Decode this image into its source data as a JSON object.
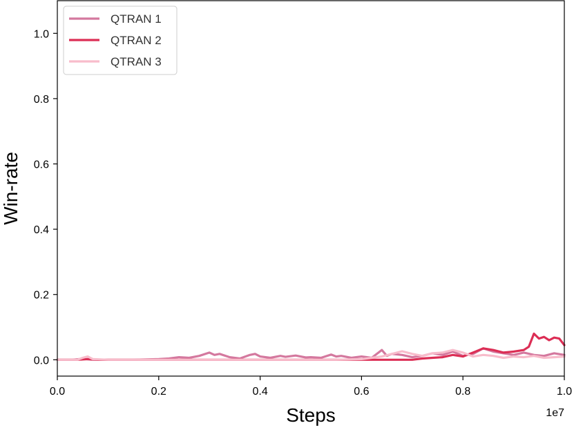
{
  "chart_data": {
    "type": "line",
    "title": "",
    "xlabel": "Steps",
    "ylabel": "Win-rate",
    "x_offset_text": "1e7",
    "xlim": [
      0,
      1.0
    ],
    "ylim": [
      -0.05,
      1.1
    ],
    "xticks": [
      0.0,
      0.2,
      0.4,
      0.6,
      0.8,
      1.0
    ],
    "xtick_labels": [
      "0.0",
      "0.2",
      "0.4",
      "0.6",
      "0.8",
      "1.0"
    ],
    "yticks": [
      0.0,
      0.2,
      0.4,
      0.6,
      0.8,
      1.0
    ],
    "ytick_labels": [
      "0.0",
      "0.2",
      "0.4",
      "0.6",
      "0.8",
      "1.0"
    ],
    "grid": false,
    "legend_position": "top-left",
    "series": [
      {
        "name": "QTRAN 1",
        "color": "#d4789e",
        "points": [
          [
            0.0,
            0.0
          ],
          [
            0.03,
            0.0
          ],
          [
            0.05,
            0.003
          ],
          [
            0.07,
            0.0
          ],
          [
            0.1,
            0.0
          ],
          [
            0.15,
            0.0
          ],
          [
            0.2,
            0.002
          ],
          [
            0.22,
            0.004
          ],
          [
            0.24,
            0.008
          ],
          [
            0.26,
            0.006
          ],
          [
            0.28,
            0.012
          ],
          [
            0.3,
            0.022
          ],
          [
            0.31,
            0.015
          ],
          [
            0.32,
            0.018
          ],
          [
            0.34,
            0.008
          ],
          [
            0.36,
            0.004
          ],
          [
            0.38,
            0.015
          ],
          [
            0.39,
            0.018
          ],
          [
            0.4,
            0.01
          ],
          [
            0.42,
            0.006
          ],
          [
            0.44,
            0.012
          ],
          [
            0.45,
            0.009
          ],
          [
            0.47,
            0.013
          ],
          [
            0.49,
            0.007
          ],
          [
            0.5,
            0.008
          ],
          [
            0.52,
            0.006
          ],
          [
            0.54,
            0.016
          ],
          [
            0.55,
            0.01
          ],
          [
            0.56,
            0.012
          ],
          [
            0.58,
            0.006
          ],
          [
            0.6,
            0.01
          ],
          [
            0.62,
            0.006
          ],
          [
            0.64,
            0.03
          ],
          [
            0.65,
            0.012
          ],
          [
            0.66,
            0.018
          ],
          [
            0.68,
            0.015
          ],
          [
            0.7,
            0.008
          ],
          [
            0.72,
            0.012
          ],
          [
            0.74,
            0.02
          ],
          [
            0.76,
            0.015
          ],
          [
            0.78,
            0.025
          ],
          [
            0.8,
            0.012
          ],
          [
            0.82,
            0.018
          ],
          [
            0.84,
            0.035
          ],
          [
            0.86,
            0.025
          ],
          [
            0.88,
            0.02
          ],
          [
            0.9,
            0.015
          ],
          [
            0.92,
            0.022
          ],
          [
            0.94,
            0.015
          ],
          [
            0.96,
            0.012
          ],
          [
            0.98,
            0.02
          ],
          [
            1.0,
            0.015
          ]
        ]
      },
      {
        "name": "QTRAN 2",
        "color": "#dc2e55",
        "points": [
          [
            0.0,
            0.0
          ],
          [
            0.04,
            0.0
          ],
          [
            0.06,
            0.002
          ],
          [
            0.08,
            0.0
          ],
          [
            0.2,
            0.0
          ],
          [
            0.4,
            0.0
          ],
          [
            0.6,
            0.0
          ],
          [
            0.7,
            0.0
          ],
          [
            0.72,
            0.004
          ],
          [
            0.74,
            0.006
          ],
          [
            0.76,
            0.008
          ],
          [
            0.78,
            0.015
          ],
          [
            0.8,
            0.01
          ],
          [
            0.82,
            0.022
          ],
          [
            0.84,
            0.035
          ],
          [
            0.86,
            0.03
          ],
          [
            0.88,
            0.022
          ],
          [
            0.9,
            0.025
          ],
          [
            0.92,
            0.03
          ],
          [
            0.93,
            0.04
          ],
          [
            0.94,
            0.08
          ],
          [
            0.95,
            0.065
          ],
          [
            0.96,
            0.07
          ],
          [
            0.97,
            0.06
          ],
          [
            0.98,
            0.068
          ],
          [
            0.99,
            0.065
          ],
          [
            1.0,
            0.045
          ]
        ]
      },
      {
        "name": "QTRAN 3",
        "color": "#f8bccb",
        "points": [
          [
            0.0,
            0.0
          ],
          [
            0.04,
            0.0
          ],
          [
            0.05,
            0.006
          ],
          [
            0.06,
            0.01
          ],
          [
            0.07,
            0.002
          ],
          [
            0.1,
            0.0
          ],
          [
            0.2,
            0.0
          ],
          [
            0.3,
            0.0
          ],
          [
            0.4,
            0.0
          ],
          [
            0.5,
            0.0
          ],
          [
            0.55,
            0.0
          ],
          [
            0.6,
            0.002
          ],
          [
            0.62,
            0.006
          ],
          [
            0.64,
            0.01
          ],
          [
            0.66,
            0.018
          ],
          [
            0.67,
            0.022
          ],
          [
            0.68,
            0.026
          ],
          [
            0.7,
            0.018
          ],
          [
            0.72,
            0.012
          ],
          [
            0.74,
            0.02
          ],
          [
            0.76,
            0.022
          ],
          [
            0.78,
            0.03
          ],
          [
            0.8,
            0.022
          ],
          [
            0.82,
            0.01
          ],
          [
            0.84,
            0.015
          ],
          [
            0.86,
            0.012
          ],
          [
            0.88,
            0.006
          ],
          [
            0.9,
            0.01
          ],
          [
            0.92,
            0.008
          ],
          [
            0.94,
            0.012
          ],
          [
            0.96,
            0.006
          ],
          [
            0.98,
            0.008
          ],
          [
            1.0,
            0.01
          ]
        ]
      }
    ]
  }
}
